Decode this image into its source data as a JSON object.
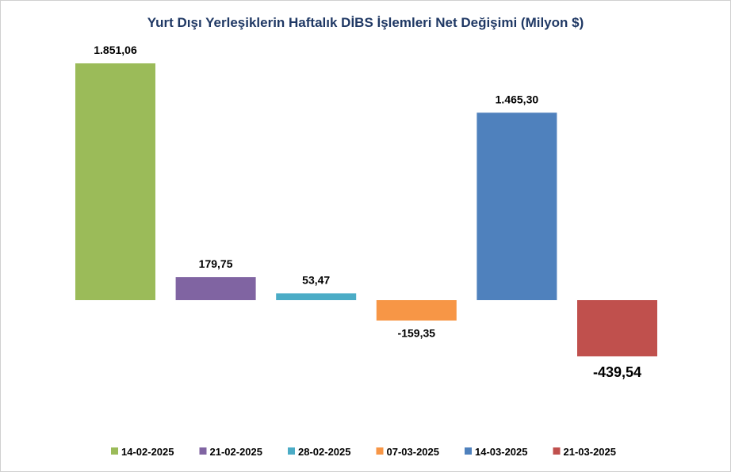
{
  "chart_data": {
    "type": "bar",
    "title": "Yurt Dışı Yerleşiklerin Haftalık DİBS İşlemleri Net Değişimi (Milyon $)",
    "categories": [
      "14-02-2025",
      "21-02-2025",
      "28-02-2025",
      "07-03-2025",
      "14-03-2025",
      "21-03-2025"
    ],
    "values": [
      1851.06,
      179.75,
      53.47,
      -159.35,
      1465.3,
      -439.54
    ],
    "data_labels": [
      "1.851,06",
      "179,75",
      "53,47",
      "-159,35",
      "1.465,30",
      "-439,54"
    ],
    "colors": [
      "#9bbb59",
      "#8064a2",
      "#4bacc6",
      "#f79646",
      "#4f81bd",
      "#c0504d"
    ],
    "xlabel": "",
    "ylabel": "",
    "ylim": [
      -800,
      2200
    ],
    "grid": false,
    "legend": "bottom"
  }
}
